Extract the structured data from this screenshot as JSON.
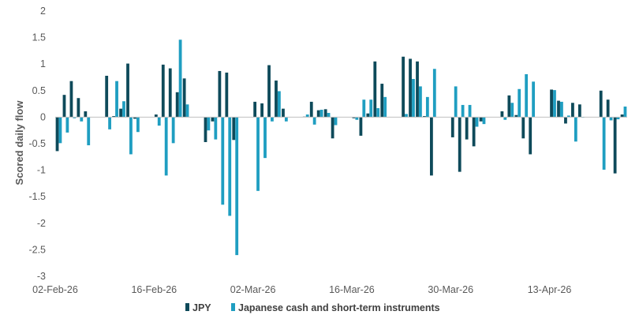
{
  "chart_data": {
    "type": "bar",
    "ylabel": "Scored daily flow",
    "ylim": [
      -3,
      2
    ],
    "yticks": [
      2,
      1.5,
      1,
      0.5,
      0,
      -0.5,
      -1,
      -1.5,
      -2,
      -2.5,
      -3
    ],
    "ytick_labels": [
      "2",
      "1.5",
      "1",
      "0.5",
      "0",
      "-0.5",
      "-1",
      "-1.5",
      "-2",
      "-2.5",
      "-3"
    ],
    "x_start": "2026-02-02",
    "x_end": "2026-04-23",
    "xtick_dates": [
      "2026-02-02",
      "2026-02-16",
      "2026-03-02",
      "2026-03-16",
      "2026-03-30",
      "2026-04-13"
    ],
    "xtick_labels": [
      "02-Feb-26",
      "16-Feb-26",
      "02-Mar-26",
      "16-Mar-26",
      "30-Mar-26",
      "13-Apr-26"
    ],
    "grid": false,
    "legend_position": "bottom",
    "dates": [
      "2026-02-02",
      "2026-02-03",
      "2026-02-04",
      "2026-02-05",
      "2026-02-06",
      "2026-02-09",
      "2026-02-10",
      "2026-02-11",
      "2026-02-12",
      "2026-02-13",
      "2026-02-16",
      "2026-02-17",
      "2026-02-18",
      "2026-02-19",
      "2026-02-20",
      "2026-02-23",
      "2026-02-24",
      "2026-02-25",
      "2026-02-26",
      "2026-02-27",
      "2026-03-02",
      "2026-03-03",
      "2026-03-04",
      "2026-03-05",
      "2026-03-06",
      "2026-03-09",
      "2026-03-10",
      "2026-03-11",
      "2026-03-12",
      "2026-03-13",
      "2026-03-16",
      "2026-03-17",
      "2026-03-18",
      "2026-03-19",
      "2026-03-20",
      "2026-03-23",
      "2026-03-24",
      "2026-03-25",
      "2026-03-26",
      "2026-03-27",
      "2026-03-30",
      "2026-03-31",
      "2026-04-01",
      "2026-04-02",
      "2026-04-03",
      "2026-04-06",
      "2026-04-07",
      "2026-04-08",
      "2026-04-09",
      "2026-04-10",
      "2026-04-13",
      "2026-04-14",
      "2026-04-15",
      "2026-04-16",
      "2026-04-17",
      "2026-04-20",
      "2026-04-21",
      "2026-04-22",
      "2026-04-23"
    ],
    "series": [
      {
        "name": "JPY",
        "color": "#0e4a5a",
        "values": [
          -0.64,
          0.42,
          0.68,
          0.36,
          0.11,
          0.78,
          0.02,
          0.16,
          1.01,
          -0.03,
          0.05,
          0.99,
          0.92,
          0.47,
          0.73,
          -0.47,
          -0.08,
          0.87,
          0.84,
          -0.43,
          0.29,
          0.26,
          0.98,
          0.69,
          0.16,
          0.01,
          0.29,
          0.13,
          0.15,
          -0.4,
          -0.02,
          -0.35,
          0.07,
          1.05,
          0.63,
          1.14,
          1.1,
          1.05,
          0.02,
          -1.1,
          -0.38,
          -1.03,
          -0.42,
          -0.55,
          -0.08,
          0.11,
          0.41,
          0.04,
          -0.4,
          -0.7,
          0.52,
          0.31,
          -0.12,
          0.27,
          0.24,
          0.5,
          0.33,
          -1.06,
          0.05
        ]
      },
      {
        "name": "Japanese cash and short-term instruments",
        "color": "#1f9ec1",
        "values": [
          -0.49,
          -0.29,
          -0.02,
          -0.08,
          -0.53,
          -0.23,
          0.68,
          0.3,
          -0.7,
          -0.28,
          -0.16,
          -1.1,
          -0.49,
          1.46,
          0.24,
          -0.25,
          -0.42,
          -1.65,
          -1.86,
          -2.6,
          -1.39,
          -0.77,
          -0.08,
          0.49,
          -0.08,
          0.05,
          -0.14,
          0.14,
          0.08,
          -0.15,
          -0.05,
          0.33,
          0.33,
          0.17,
          0.38,
          0.06,
          0.72,
          0.58,
          0.38,
          0.91,
          0.58,
          0.23,
          0.23,
          -0.18,
          -0.13,
          -0.05,
          0.27,
          0.53,
          0.81,
          0.67,
          0.51,
          0.29,
          0.03,
          -0.46,
          -0.01,
          -0.99,
          -0.06,
          -0.04,
          0.2
        ]
      }
    ]
  }
}
